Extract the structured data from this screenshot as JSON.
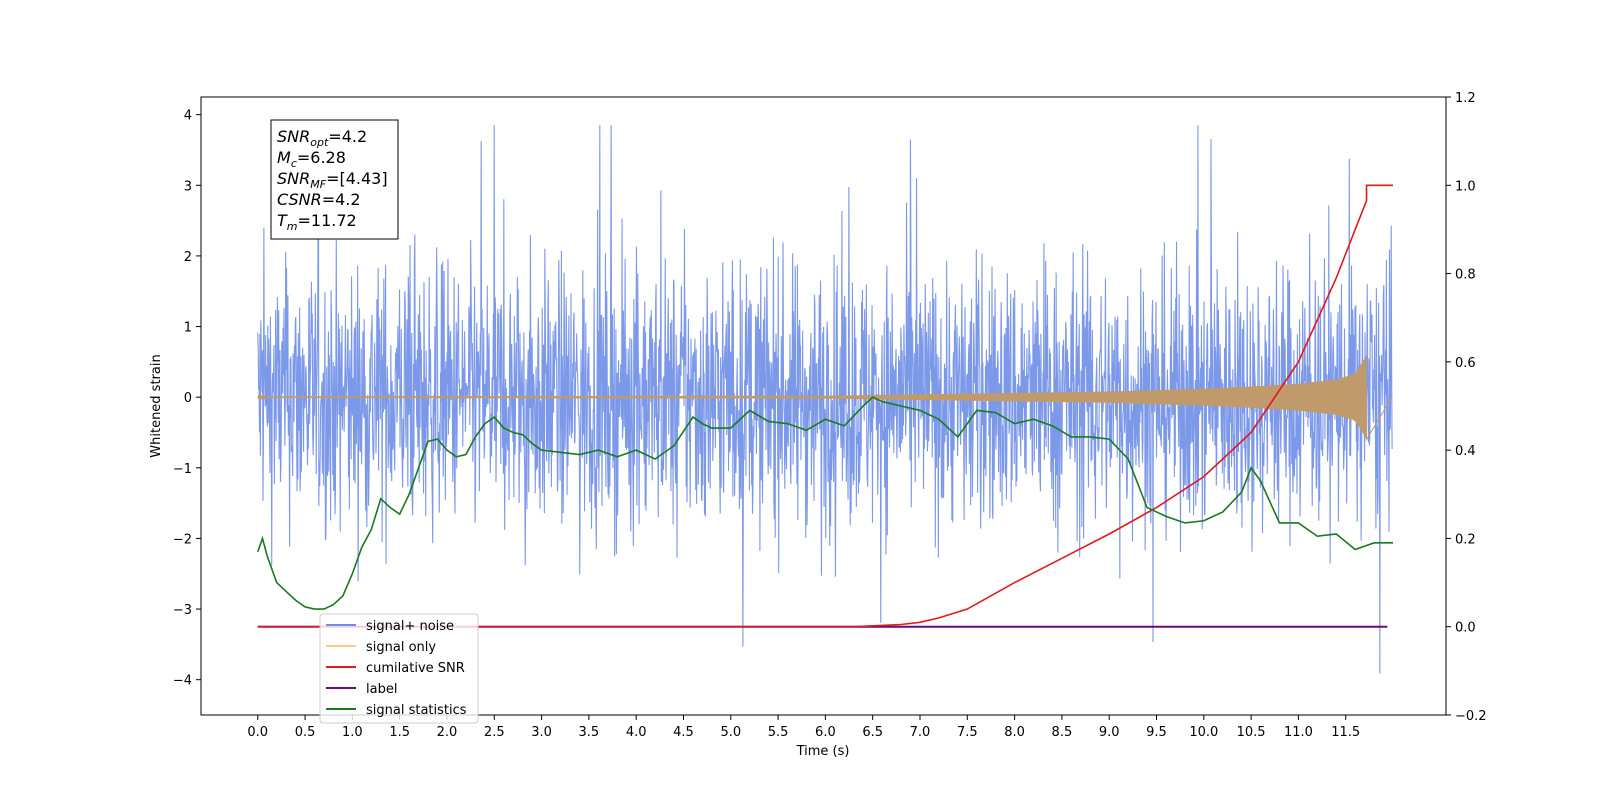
{
  "chart_data": {
    "type": "line",
    "xlabel": "Time (s)",
    "ylabel": "Whitened strain",
    "xlim": [
      -0.6,
      12.56
    ],
    "ylim": [
      -4.5,
      4.25
    ],
    "y2lim": [
      -0.2,
      1.2
    ],
    "x_ticks": [
      "0.0",
      "0.5",
      "1.0",
      "1.5",
      "2.0",
      "2.5",
      "3.0",
      "3.5",
      "4.0",
      "4.5",
      "5.0",
      "5.5",
      "6.0",
      "6.5",
      "7.0",
      "7.5",
      "8.0",
      "8.5",
      "9.0",
      "9.5",
      "10.0",
      "10.5",
      "11.0",
      "11.5"
    ],
    "y_ticks": [
      "4",
      "3",
      "2",
      "1",
      "0",
      "−1",
      "−2",
      "−3",
      "−4"
    ],
    "y2_ticks": [
      "1.2",
      "1.0",
      "0.8",
      "0.6",
      "0.4",
      "0.2",
      "0.0",
      "−0.2"
    ],
    "annotation": [
      {
        "base": "SNR",
        "sub": "opt",
        "value": "=4.2"
      },
      {
        "base": "M",
        "sub": "c",
        "value": "=6.28"
      },
      {
        "base": "SNR",
        "sub": "MF",
        "value": "=[4.43]"
      },
      {
        "base": "CSNR",
        "sub": "",
        "value": "=4.2"
      },
      {
        "base": "T",
        "sub": "m",
        "value": "=11.72"
      }
    ],
    "legend": {
      "placement": "lower-left",
      "entries": [
        {
          "label": "signal+ noise",
          "color": "#6f8ce6"
        },
        {
          "label": "signal only",
          "color": "#f7c98a"
        },
        {
          "label": "cumilative SNR",
          "color": "#e01a1a"
        },
        {
          "label": "label",
          "color": "#6a0a7a"
        },
        {
          "label": "signal statistics",
          "color": "#1a7a1a"
        }
      ]
    },
    "series": [
      {
        "name": "signal+ noise",
        "axis": "left",
        "color": "#7895e8",
        "t_range": [
          0.0,
          11.99
        ],
        "noise_sigma": 0.9,
        "dense": true
      },
      {
        "name": "signal only",
        "axis": "left",
        "color": "#c09a6b",
        "t_range": [
          0.0,
          11.72
        ],
        "envelope": {
          "t": [
            0,
            6.0,
            7.0,
            8.0,
            9.0,
            10.0,
            10.5,
            11.0,
            11.4,
            11.6,
            11.68,
            11.72
          ],
          "amp": [
            0.01,
            0.02,
            0.04,
            0.06,
            0.08,
            0.12,
            0.15,
            0.19,
            0.25,
            0.33,
            0.5,
            0.6
          ]
        }
      },
      {
        "name": "cumilative SNR",
        "axis": "right",
        "color": "#e01a1a",
        "x": [
          0,
          6.3,
          6.8,
          7.0,
          7.2,
          7.5,
          8.0,
          8.5,
          9.0,
          9.5,
          10.0,
          10.5,
          11.0,
          11.4,
          11.6,
          11.72,
          11.72,
          12.0
        ],
        "y": [
          0.0,
          0.0,
          0.005,
          0.01,
          0.02,
          0.04,
          0.1,
          0.155,
          0.21,
          0.27,
          0.34,
          0.44,
          0.6,
          0.79,
          0.9,
          0.965,
          1.0,
          1.0
        ]
      },
      {
        "name": "label",
        "axis": "right",
        "color": "#6a0a7a",
        "x": [
          0,
          11.94
        ],
        "y": [
          0.0,
          0.0
        ]
      },
      {
        "name": "signal statistics",
        "axis": "right",
        "color": "#1a7a1a",
        "x": [
          0,
          0.05,
          0.1,
          0.15,
          0.2,
          0.3,
          0.4,
          0.5,
          0.6,
          0.7,
          0.8,
          0.9,
          1.0,
          1.1,
          1.2,
          1.3,
          1.4,
          1.5,
          1.6,
          1.7,
          1.8,
          1.9,
          2.0,
          2.1,
          2.2,
          2.3,
          2.4,
          2.5,
          2.6,
          2.7,
          2.8,
          2.9,
          3.0,
          3.2,
          3.4,
          3.6,
          3.8,
          4.0,
          4.2,
          4.4,
          4.6,
          4.7,
          4.8,
          5.0,
          5.2,
          5.4,
          5.6,
          5.8,
          6.0,
          6.2,
          6.4,
          6.5,
          6.6,
          6.8,
          7.0,
          7.2,
          7.4,
          7.6,
          7.8,
          8.0,
          8.2,
          8.4,
          8.6,
          8.8,
          9.0,
          9.2,
          9.4,
          9.5,
          9.6,
          9.8,
          10.0,
          10.2,
          10.4,
          10.5,
          10.6,
          10.8,
          11.0,
          11.2,
          11.4,
          11.6,
          11.8,
          12.0
        ],
        "y": [
          0.17,
          0.2,
          0.16,
          0.13,
          0.1,
          0.08,
          0.06,
          0.045,
          0.04,
          0.04,
          0.05,
          0.07,
          0.12,
          0.18,
          0.22,
          0.29,
          0.27,
          0.255,
          0.3,
          0.36,
          0.42,
          0.425,
          0.4,
          0.385,
          0.39,
          0.43,
          0.46,
          0.475,
          0.45,
          0.44,
          0.435,
          0.415,
          0.4,
          0.395,
          0.39,
          0.4,
          0.385,
          0.4,
          0.38,
          0.41,
          0.475,
          0.46,
          0.45,
          0.45,
          0.49,
          0.465,
          0.46,
          0.445,
          0.47,
          0.455,
          0.5,
          0.52,
          0.51,
          0.5,
          0.49,
          0.47,
          0.43,
          0.49,
          0.485,
          0.46,
          0.47,
          0.455,
          0.43,
          0.43,
          0.425,
          0.38,
          0.27,
          0.26,
          0.25,
          0.235,
          0.24,
          0.26,
          0.305,
          0.36,
          0.33,
          0.235,
          0.235,
          0.205,
          0.21,
          0.175,
          0.19,
          0.19
        ]
      }
    ]
  }
}
